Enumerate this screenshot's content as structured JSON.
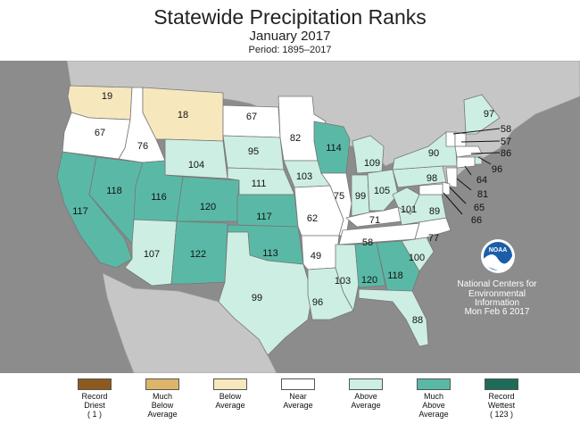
{
  "title": "Statewide Precipitation Ranks",
  "subtitle": "January 2017",
  "period": "Period: 1895–2017",
  "credit": {
    "line1": "National Centers for",
    "line2": "Environmental",
    "line3": "Information",
    "line4": "Mon Feb  6 2017",
    "logo_text": "NOAA"
  },
  "colors": {
    "record_driest": "#8c5a1f",
    "much_below": "#dcb56b",
    "below": "#f7e7bd",
    "near": "#ffffff",
    "above": "#cdeee3",
    "much_above": "#5ab9a6",
    "record_wettest": "#1f6b5a",
    "background": "#8c8c8c",
    "ocean": "#8c8c8c"
  },
  "legend": [
    {
      "label": "Record Driest",
      "sub": "( 1 )",
      "color_key": "record_driest"
    },
    {
      "label": "Much Below Average",
      "sub": "",
      "color_key": "much_below"
    },
    {
      "label": "Below Average",
      "sub": "",
      "color_key": "below"
    },
    {
      "label": "Near Average",
      "sub": "",
      "color_key": "near"
    },
    {
      "label": "Above Average",
      "sub": "",
      "color_key": "above"
    },
    {
      "label": "Much Above Average",
      "sub": "",
      "color_key": "much_above"
    },
    {
      "label": "Record Wettest",
      "sub": "( 123 )",
      "color_key": "record_wettest"
    }
  ],
  "states": {
    "WA": {
      "rank": "19",
      "cat": "below"
    },
    "OR": {
      "rank": "67",
      "cat": "near"
    },
    "CA": {
      "rank": "117",
      "cat": "much_above"
    },
    "NV": {
      "rank": "118",
      "cat": "much_above"
    },
    "ID": {
      "rank": "76",
      "cat": "near"
    },
    "MT": {
      "rank": "18",
      "cat": "below"
    },
    "WY": {
      "rank": "104",
      "cat": "above"
    },
    "UT": {
      "rank": "116",
      "cat": "much_above"
    },
    "CO": {
      "rank": "120",
      "cat": "much_above"
    },
    "AZ": {
      "rank": "107",
      "cat": "above"
    },
    "NM": {
      "rank": "122",
      "cat": "much_above"
    },
    "ND": {
      "rank": "67",
      "cat": "near"
    },
    "SD": {
      "rank": "95",
      "cat": "above"
    },
    "NE": {
      "rank": "111",
      "cat": "above"
    },
    "KS": {
      "rank": "117",
      "cat": "much_above"
    },
    "OK": {
      "rank": "113",
      "cat": "much_above"
    },
    "TX": {
      "rank": "99",
      "cat": "above"
    },
    "MN": {
      "rank": "82",
      "cat": "near"
    },
    "IA": {
      "rank": "103",
      "cat": "above"
    },
    "MO": {
      "rank": "62",
      "cat": "near"
    },
    "AR": {
      "rank": "49",
      "cat": "near"
    },
    "LA": {
      "rank": "96",
      "cat": "above"
    },
    "WI": {
      "rank": "114",
      "cat": "much_above"
    },
    "IL": {
      "rank": "75",
      "cat": "near"
    },
    "MI": {
      "rank": "109",
      "cat": "above"
    },
    "IN": {
      "rank": "99",
      "cat": "above"
    },
    "OH": {
      "rank": "105",
      "cat": "above"
    },
    "KY": {
      "rank": "71",
      "cat": "near"
    },
    "TN": {
      "rank": "58",
      "cat": "near"
    },
    "MS": {
      "rank": "103",
      "cat": "above"
    },
    "AL": {
      "rank": "120",
      "cat": "much_above"
    },
    "GA": {
      "rank": "118",
      "cat": "much_above"
    },
    "FL": {
      "rank": "88",
      "cat": "above"
    },
    "SC": {
      "rank": "100",
      "cat": "above"
    },
    "NC": {
      "rank": "77",
      "cat": "near"
    },
    "VA": {
      "rank": "89",
      "cat": "above"
    },
    "WV": {
      "rank": "101",
      "cat": "above"
    },
    "PA": {
      "rank": "98",
      "cat": "above"
    },
    "NY": {
      "rank": "90",
      "cat": "above"
    },
    "ME": {
      "rank": "97",
      "cat": "above"
    },
    "VT": {
      "rank": "58",
      "cat": "near"
    },
    "NH": {
      "rank": "57",
      "cat": "near"
    },
    "MA": {
      "rank": "86",
      "cat": "near"
    },
    "RI": {
      "rank": "96",
      "cat": "above"
    },
    "CT": {
      "rank": "64",
      "cat": "near"
    },
    "NJ": {
      "rank": "81",
      "cat": "near"
    },
    "DE": {
      "rank": "65",
      "cat": "near"
    },
    "MD": {
      "rank": "66",
      "cat": "near"
    }
  }
}
